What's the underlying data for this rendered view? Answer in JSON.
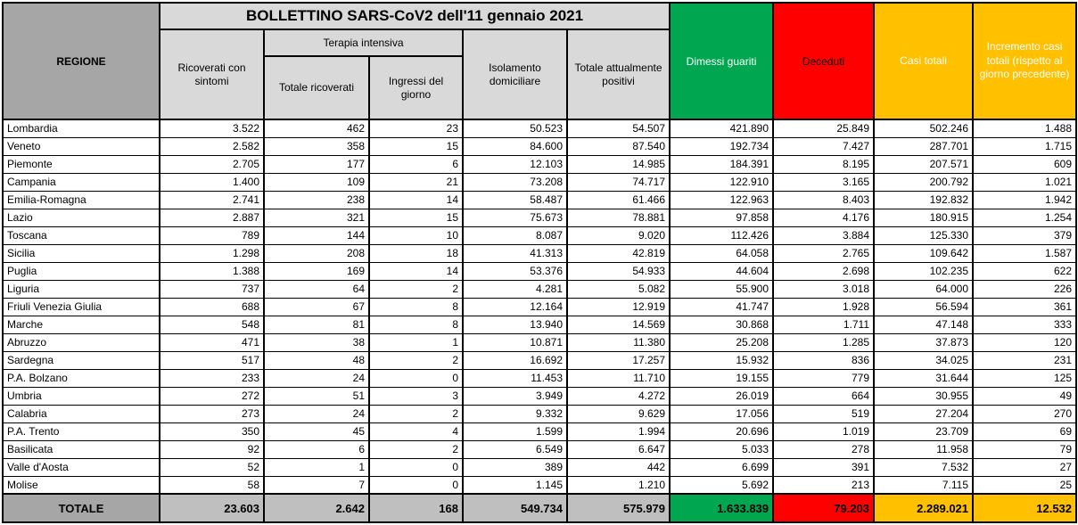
{
  "title": "BOLLETTINO SARS-CoV2 dell'11 gennaio 2021",
  "colors": {
    "green": "#00A650",
    "red": "#FF0000",
    "yellow": "#FFC000",
    "header_gray": "#D9D9D9",
    "dark_gray": "#A6A6A6",
    "totale_gray": "#BFBFBF"
  },
  "header": {
    "regione": "REGIONE",
    "ricoverati_con_sintomi": "Ricoverati con sintomi",
    "terapia_intensiva": "Terapia intensiva",
    "totale_ricoverati": "Totale ricoverati",
    "ingressi_del_giorno": "Ingressi del giorno",
    "isolamento_domiciliare": "Isolamento domiciliare",
    "totale_attualmente_positivi": "Totale attualmente positivi",
    "dimessi_guariti": "Dimessi guariti",
    "deceduti": "Deceduti",
    "casi_totali": "Casi totali",
    "incremento_casi": "Incremento casi totali (rispetto al giorno precedente)"
  },
  "rows": [
    {
      "regione": "Lombardia",
      "values": [
        "3.522",
        "462",
        "23",
        "50.523",
        "54.507",
        "421.890",
        "25.849",
        "502.246",
        "1.488"
      ]
    },
    {
      "regione": "Veneto",
      "values": [
        "2.582",
        "358",
        "15",
        "84.600",
        "87.540",
        "192.734",
        "7.427",
        "287.701",
        "1.715"
      ]
    },
    {
      "regione": "Piemonte",
      "values": [
        "2.705",
        "177",
        "6",
        "12.103",
        "14.985",
        "184.391",
        "8.195",
        "207.571",
        "609"
      ]
    },
    {
      "regione": "Campania",
      "values": [
        "1.400",
        "109",
        "21",
        "73.208",
        "74.717",
        "122.910",
        "3.165",
        "200.792",
        "1.021"
      ]
    },
    {
      "regione": "Emilia-Romagna",
      "values": [
        "2.741",
        "238",
        "14",
        "58.487",
        "61.466",
        "122.963",
        "8.403",
        "192.832",
        "1.942"
      ]
    },
    {
      "regione": "Lazio",
      "values": [
        "2.887",
        "321",
        "15",
        "75.673",
        "78.881",
        "97.858",
        "4.176",
        "180.915",
        "1.254"
      ]
    },
    {
      "regione": "Toscana",
      "values": [
        "789",
        "144",
        "10",
        "8.087",
        "9.020",
        "112.426",
        "3.884",
        "125.330",
        "379"
      ]
    },
    {
      "regione": "Sicilia",
      "values": [
        "1.298",
        "208",
        "18",
        "41.313",
        "42.819",
        "64.058",
        "2.765",
        "109.642",
        "1.587"
      ]
    },
    {
      "regione": "Puglia",
      "values": [
        "1.388",
        "169",
        "14",
        "53.376",
        "54.933",
        "44.604",
        "2.698",
        "102.235",
        "622"
      ]
    },
    {
      "regione": "Liguria",
      "values": [
        "737",
        "64",
        "2",
        "4.281",
        "5.082",
        "55.900",
        "3.018",
        "64.000",
        "226"
      ]
    },
    {
      "regione": "Friuli Venezia Giulia",
      "values": [
        "688",
        "67",
        "8",
        "12.164",
        "12.919",
        "41.747",
        "1.928",
        "56.594",
        "361"
      ]
    },
    {
      "regione": "Marche",
      "values": [
        "548",
        "81",
        "8",
        "13.940",
        "14.569",
        "30.868",
        "1.711",
        "47.148",
        "333"
      ]
    },
    {
      "regione": "Abruzzo",
      "values": [
        "471",
        "38",
        "1",
        "10.871",
        "11.380",
        "25.208",
        "1.285",
        "37.873",
        "120"
      ]
    },
    {
      "regione": "Sardegna",
      "values": [
        "517",
        "48",
        "2",
        "16.692",
        "17.257",
        "15.932",
        "836",
        "34.025",
        "231"
      ]
    },
    {
      "regione": "P.A. Bolzano",
      "values": [
        "233",
        "24",
        "0",
        "11.453",
        "11.710",
        "19.155",
        "779",
        "31.644",
        "125"
      ]
    },
    {
      "regione": "Umbria",
      "values": [
        "272",
        "51",
        "3",
        "3.949",
        "4.272",
        "26.019",
        "664",
        "30.955",
        "49"
      ]
    },
    {
      "regione": "Calabria",
      "values": [
        "273",
        "24",
        "2",
        "9.332",
        "9.629",
        "17.056",
        "519",
        "27.204",
        "270"
      ]
    },
    {
      "regione": "P.A. Trento",
      "values": [
        "350",
        "45",
        "4",
        "1.599",
        "1.994",
        "20.696",
        "1.019",
        "23.709",
        "69"
      ]
    },
    {
      "regione": "Basilicata",
      "values": [
        "92",
        "6",
        "2",
        "6.549",
        "6.647",
        "5.033",
        "278",
        "11.958",
        "79"
      ]
    },
    {
      "regione": "Valle d'Aosta",
      "values": [
        "52",
        "1",
        "0",
        "389",
        "442",
        "6.699",
        "391",
        "7.532",
        "27"
      ]
    },
    {
      "regione": "Molise",
      "values": [
        "58",
        "7",
        "0",
        "1.145",
        "1.210",
        "5.692",
        "213",
        "7.115",
        "25"
      ]
    }
  ],
  "totale": {
    "label": "TOTALE",
    "values": [
      "23.603",
      "2.642",
      "168",
      "549.734",
      "575.979",
      "1.633.839",
      "79.203",
      "2.289.021",
      "12.532"
    ]
  }
}
